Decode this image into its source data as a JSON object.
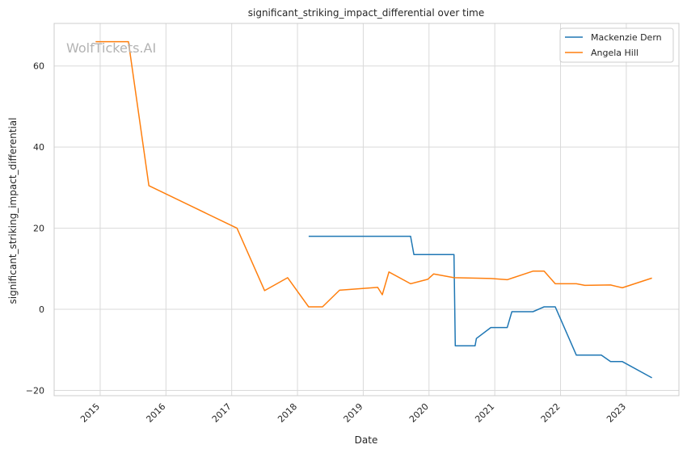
{
  "chart_data": {
    "type": "line",
    "title": "significant_striking_impact_differential over time",
    "xlabel": "Date",
    "ylabel": "significant_striking_impact_differential",
    "watermark": "WolfTickets.AI",
    "x_ticks": [
      "2015",
      "2016",
      "2017",
      "2018",
      "2019",
      "2020",
      "2021",
      "2022",
      "2023"
    ],
    "y_ticks": [
      -20,
      0,
      20,
      40,
      60
    ],
    "xlim": [
      2014.3,
      2023.8
    ],
    "ylim": [
      -21.3,
      70.5
    ],
    "grid": true,
    "legend_position": "top-right",
    "series": [
      {
        "name": "Mackenzie Dern",
        "color": "#1f77b4",
        "points": [
          [
            2018.17,
            18.0
          ],
          [
            2019.72,
            18.0
          ],
          [
            2019.77,
            13.5
          ],
          [
            2020.07,
            13.5
          ],
          [
            2020.38,
            13.5
          ],
          [
            2020.4,
            -9.0
          ],
          [
            2020.7,
            -9.0
          ],
          [
            2020.72,
            -7.2
          ],
          [
            2020.94,
            -4.5
          ],
          [
            2021.19,
            -4.5
          ],
          [
            2021.26,
            -0.6
          ],
          [
            2021.58,
            -0.6
          ],
          [
            2021.75,
            0.6
          ],
          [
            2021.92,
            0.6
          ],
          [
            2022.24,
            -11.3
          ],
          [
            2022.62,
            -11.3
          ],
          [
            2022.76,
            -12.9
          ],
          [
            2022.94,
            -12.9
          ],
          [
            2023.39,
            -16.9
          ]
        ]
      },
      {
        "name": "Angela Hill",
        "color": "#ff7f0e",
        "points": [
          [
            2014.93,
            66.0
          ],
          [
            2015.29,
            66.0
          ],
          [
            2015.43,
            66.0
          ],
          [
            2015.74,
            30.5
          ],
          [
            2017.08,
            20.0
          ],
          [
            2017.5,
            4.6
          ],
          [
            2017.85,
            7.8
          ],
          [
            2018.17,
            0.6
          ],
          [
            2018.38,
            0.6
          ],
          [
            2018.64,
            4.7
          ],
          [
            2019.22,
            5.4
          ],
          [
            2019.29,
            3.6
          ],
          [
            2019.39,
            9.2
          ],
          [
            2019.72,
            6.3
          ],
          [
            2019.98,
            7.4
          ],
          [
            2020.07,
            8.7
          ],
          [
            2020.38,
            7.8
          ],
          [
            2020.94,
            7.6
          ],
          [
            2021.19,
            7.3
          ],
          [
            2021.58,
            9.4
          ],
          [
            2021.75,
            9.4
          ],
          [
            2021.92,
            6.3
          ],
          [
            2022.24,
            6.3
          ],
          [
            2022.37,
            5.9
          ],
          [
            2022.76,
            6.0
          ],
          [
            2022.94,
            5.3
          ],
          [
            2023.39,
            7.7
          ]
        ]
      }
    ]
  }
}
